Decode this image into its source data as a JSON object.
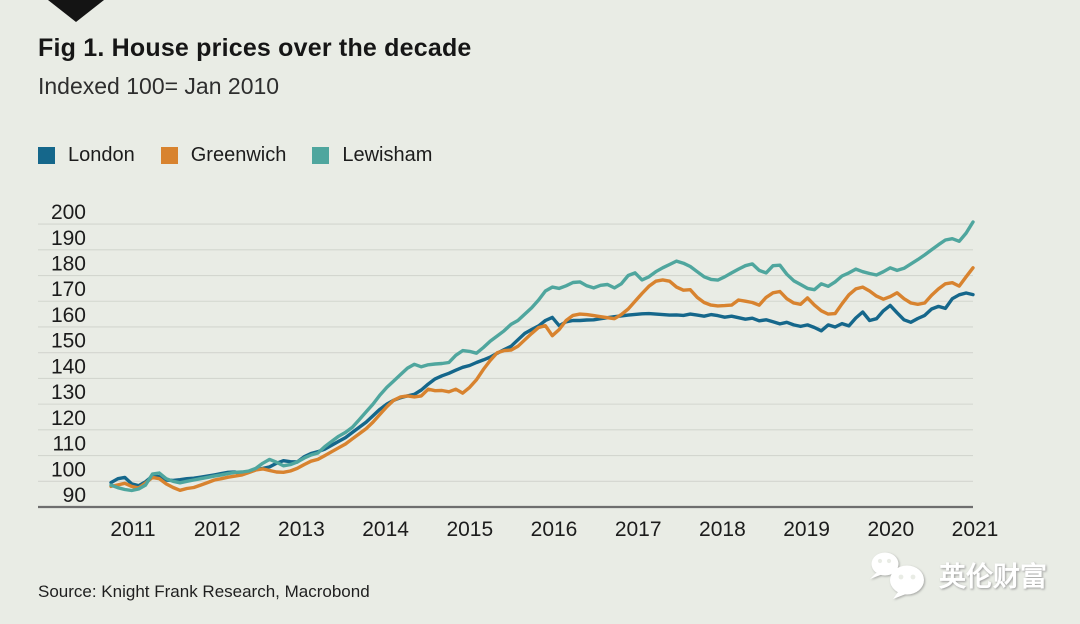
{
  "header": {
    "title": "Fig 1. House prices over the decade",
    "subtitle": "Indexed 100= Jan 2010"
  },
  "legend": [
    {
      "label": "London",
      "color": "#15678b"
    },
    {
      "label": "Greenwich",
      "color": "#d8832f"
    },
    {
      "label": "Lewisham",
      "color": "#4fa69e"
    }
  ],
  "chart_data": {
    "type": "line",
    "title": "Fig 1. House prices over the decade",
    "subtitle": "Indexed 100= Jan 2010",
    "x_unit": "month",
    "x_start": "2011-01",
    "x_end": "2021-06",
    "x_tick_labels": [
      "2011",
      "2012",
      "2013",
      "2014",
      "2015",
      "2016",
      "2017",
      "2018",
      "2019",
      "2020",
      "2021"
    ],
    "y_ticks": [
      90,
      100,
      110,
      120,
      130,
      140,
      150,
      160,
      170,
      180,
      190,
      200
    ],
    "ylim": [
      90,
      202
    ],
    "grid": "horizontal",
    "legend_position": "top-left",
    "colors": {
      "background": "#e9ece5",
      "gridline": "#d3d6cf",
      "axis_line": "#6e6e6e",
      "text": "#1c1c1c"
    },
    "series": [
      {
        "name": "London",
        "color": "#15678b",
        "values": [
          99.5,
          101.0,
          101.5,
          99.0,
          98.3,
          99.8,
          102.0,
          101.8,
          100.5,
          100.3,
          100.6,
          101.0,
          101.2,
          101.6,
          102.0,
          102.5,
          103.0,
          103.5,
          103.6,
          102.6,
          103.5,
          104.5,
          105.0,
          105.6,
          107.0,
          108.0,
          107.6,
          107.5,
          109.5,
          110.8,
          111.5,
          112.5,
          114.0,
          115.5,
          117.0,
          119.0,
          121.0,
          123.0,
          125.5,
          128.0,
          130.0,
          131.5,
          132.5,
          133.2,
          133.8,
          135.5,
          137.8,
          139.8,
          141.0,
          142.0,
          143.2,
          144.3,
          145.0,
          146.2,
          147.2,
          148.3,
          149.8,
          151.2,
          152.5,
          155.0,
          157.5,
          159.0,
          160.4,
          162.5,
          163.7,
          160.5,
          162.0,
          162.5,
          162.5,
          162.7,
          162.8,
          163.2,
          163.6,
          164.0,
          164.3,
          164.6,
          164.9,
          165.1,
          165.2,
          165.0,
          164.8,
          164.6,
          164.7,
          164.5,
          165.0,
          164.6,
          164.2,
          164.8,
          164.4,
          163.8,
          164.2,
          163.6,
          163.0,
          163.4,
          162.4,
          162.8,
          162.0,
          161.2,
          161.8,
          160.8,
          160.2,
          160.8,
          159.8,
          158.5,
          160.8,
          160.0,
          161.3,
          160.4,
          163.5,
          165.8,
          162.5,
          163.2,
          166.3,
          168.4,
          165.5,
          162.8,
          161.8,
          163.3,
          164.5,
          167.0,
          168.0,
          167.2,
          171.0,
          172.5,
          173.2,
          172.6
        ]
      },
      {
        "name": "Greenwich",
        "color": "#d8832f",
        "values": [
          98.0,
          98.6,
          99.2,
          98.0,
          97.4,
          99.3,
          101.5,
          101.0,
          99.0,
          97.6,
          96.5,
          97.2,
          97.6,
          98.5,
          99.5,
          100.5,
          101.0,
          101.6,
          102.0,
          102.5,
          103.4,
          104.4,
          104.8,
          104.2,
          103.6,
          103.5,
          104.0,
          105.0,
          106.5,
          107.8,
          108.5,
          110.0,
          111.5,
          113.0,
          114.5,
          116.5,
          118.5,
          120.5,
          123.0,
          126.0,
          129.0,
          131.5,
          132.8,
          133.2,
          132.8,
          133.2,
          135.8,
          135.2,
          135.3,
          134.8,
          135.8,
          134.3,
          136.5,
          139.5,
          143.5,
          147.0,
          150.0,
          150.8,
          151.0,
          152.5,
          155.0,
          157.5,
          159.8,
          160.5,
          156.6,
          159.0,
          162.5,
          164.5,
          165.0,
          164.8,
          164.4,
          164.0,
          163.6,
          163.2,
          164.8,
          167.0,
          170.0,
          173.0,
          175.8,
          177.8,
          178.3,
          177.8,
          175.5,
          174.3,
          174.5,
          171.5,
          169.5,
          168.5,
          168.2,
          168.3,
          168.5,
          170.5,
          170.0,
          169.5,
          168.5,
          171.5,
          173.3,
          173.8,
          171.0,
          169.3,
          168.8,
          171.3,
          168.5,
          166.3,
          165.0,
          165.2,
          169.0,
          172.5,
          174.8,
          175.5,
          174.0,
          172.0,
          170.8,
          171.8,
          173.3,
          171.0,
          169.3,
          168.8,
          169.3,
          172.3,
          174.8,
          176.8,
          177.2,
          175.9,
          179.5,
          183.0
        ]
      },
      {
        "name": "Lewisham",
        "color": "#4fa69e",
        "values": [
          98.5,
          97.5,
          96.8,
          96.4,
          97.0,
          98.5,
          102.8,
          103.2,
          101.0,
          100.0,
          99.4,
          100.0,
          100.5,
          101.0,
          101.5,
          102.0,
          102.5,
          103.0,
          103.5,
          103.6,
          104.0,
          105.0,
          107.0,
          108.5,
          107.4,
          106.0,
          106.5,
          107.5,
          109.0,
          110.2,
          111.0,
          113.5,
          115.5,
          117.5,
          119.0,
          121.0,
          124.0,
          127.0,
          130.0,
          133.5,
          136.5,
          139.0,
          141.5,
          144.0,
          145.5,
          144.5,
          145.3,
          145.6,
          145.8,
          146.2,
          149.0,
          150.8,
          150.5,
          149.8,
          152.0,
          154.5,
          156.5,
          158.5,
          161.0,
          162.5,
          165.0,
          167.5,
          170.5,
          174.0,
          175.5,
          175.0,
          176.0,
          177.3,
          177.5,
          176.0,
          175.2,
          176.2,
          176.5,
          175.2,
          176.8,
          180.0,
          181.0,
          178.3,
          179.5,
          181.5,
          183.0,
          184.3,
          185.6,
          184.8,
          183.5,
          181.5,
          179.5,
          178.5,
          178.2,
          179.5,
          181.0,
          182.5,
          183.8,
          184.5,
          182.0,
          181.0,
          183.8,
          184.0,
          180.5,
          178.0,
          176.5,
          175.0,
          174.5,
          176.8,
          175.8,
          177.5,
          179.8,
          181.0,
          182.5,
          181.5,
          180.8,
          180.2,
          181.5,
          183.0,
          182.0,
          182.8,
          184.5,
          186.2,
          188.0,
          190.0,
          192.0,
          193.8,
          194.3,
          193.3,
          196.5,
          200.8
        ]
      }
    ]
  },
  "footer": {
    "source": "Source: Knight Frank Research, Macrobond",
    "watermark_text": "英伦财富"
  }
}
